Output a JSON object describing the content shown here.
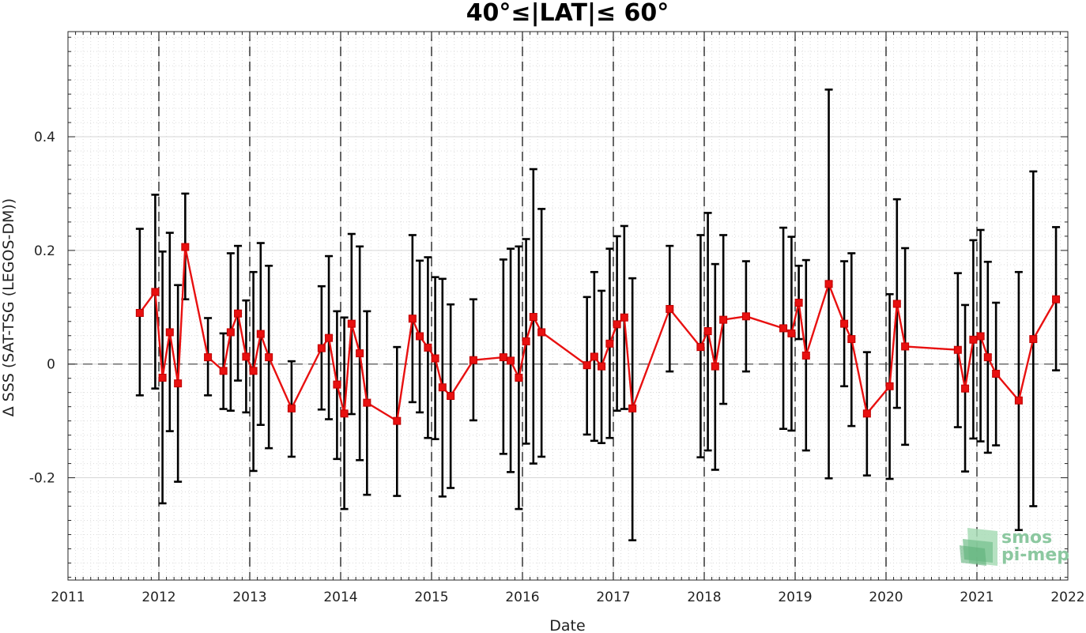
{
  "chart_data": {
    "type": "line",
    "title": "40°≤|LAT|≤ 60°",
    "xlabel": "Date",
    "ylabel": "Δ SSS (SAT-TSG (LEGOS-DM))",
    "xlim": [
      2011,
      2022
    ],
    "ylim": [
      -0.38,
      0.585
    ],
    "x_ticks": [
      "2011",
      "2012",
      "2013",
      "2014",
      "2015",
      "2016",
      "2017",
      "2018",
      "2019",
      "2020",
      "2021",
      "2022"
    ],
    "y_ticks": [
      -0.2,
      0,
      0.2,
      0.4
    ],
    "y_tick_labels": [
      "-0.2",
      "0",
      "0.2",
      "0.4"
    ],
    "grid": "minor-dotted",
    "year_boundaries_dashed": [
      2012,
      2013,
      2014,
      2015,
      2016,
      2017,
      2018,
      2019,
      2020,
      2021
    ],
    "zero_line": true,
    "series_color": "#e81010",
    "errorbar_color": "#000000",
    "points": [
      {
        "x": 2011.79,
        "y": 0.09,
        "lo": -0.055,
        "hi": 0.238
      },
      {
        "x": 2011.96,
        "y": 0.127,
        "lo": -0.043,
        "hi": 0.298
      },
      {
        "x": 2012.04,
        "y": -0.024,
        "lo": -0.245,
        "hi": 0.198
      },
      {
        "x": 2012.12,
        "y": 0.056,
        "lo": -0.118,
        "hi": 0.231
      },
      {
        "x": 2012.21,
        "y": -0.034,
        "lo": -0.207,
        "hi": 0.139
      },
      {
        "x": 2012.29,
        "y": 0.206,
        "lo": 0.114,
        "hi": 0.3
      },
      {
        "x": 2012.54,
        "y": 0.012,
        "lo": -0.055,
        "hi": 0.081
      },
      {
        "x": 2012.71,
        "y": -0.012,
        "lo": -0.079,
        "hi": 0.054
      },
      {
        "x": 2012.79,
        "y": 0.056,
        "lo": -0.082,
        "hi": 0.195
      },
      {
        "x": 2012.87,
        "y": 0.089,
        "lo": -0.029,
        "hi": 0.208
      },
      {
        "x": 2012.96,
        "y": 0.013,
        "lo": -0.085,
        "hi": 0.112
      },
      {
        "x": 2013.04,
        "y": -0.012,
        "lo": -0.188,
        "hi": 0.162
      },
      {
        "x": 2013.12,
        "y": 0.053,
        "lo": -0.107,
        "hi": 0.213
      },
      {
        "x": 2013.21,
        "y": 0.012,
        "lo": -0.148,
        "hi": 0.173
      },
      {
        "x": 2013.46,
        "y": -0.078,
        "lo": -0.163,
        "hi": 0.005
      },
      {
        "x": 2013.79,
        "y": 0.028,
        "lo": -0.08,
        "hi": 0.137
      },
      {
        "x": 2013.87,
        "y": 0.046,
        "lo": -0.097,
        "hi": 0.19
      },
      {
        "x": 2013.96,
        "y": -0.036,
        "lo": -0.167,
        "hi": 0.093
      },
      {
        "x": 2014.04,
        "y": -0.087,
        "lo": -0.255,
        "hi": 0.082
      },
      {
        "x": 2014.12,
        "y": 0.071,
        "lo": -0.088,
        "hi": 0.229
      },
      {
        "x": 2014.21,
        "y": 0.019,
        "lo": -0.169,
        "hi": 0.207
      },
      {
        "x": 2014.29,
        "y": -0.068,
        "lo": -0.23,
        "hi": 0.093
      },
      {
        "x": 2014.62,
        "y": -0.1,
        "lo": -0.232,
        "hi": 0.03
      },
      {
        "x": 2014.79,
        "y": 0.08,
        "lo": -0.067,
        "hi": 0.227
      },
      {
        "x": 2014.87,
        "y": 0.049,
        "lo": -0.085,
        "hi": 0.182
      },
      {
        "x": 2014.96,
        "y": 0.029,
        "lo": -0.13,
        "hi": 0.188
      },
      {
        "x": 2015.04,
        "y": 0.01,
        "lo": -0.132,
        "hi": 0.153
      },
      {
        "x": 2015.12,
        "y": -0.041,
        "lo": -0.233,
        "hi": 0.15
      },
      {
        "x": 2015.21,
        "y": -0.056,
        "lo": -0.218,
        "hi": 0.105
      },
      {
        "x": 2015.46,
        "y": 0.007,
        "lo": -0.099,
        "hi": 0.114
      },
      {
        "x": 2015.79,
        "y": 0.012,
        "lo": -0.158,
        "hi": 0.184
      },
      {
        "x": 2015.87,
        "y": 0.006,
        "lo": -0.19,
        "hi": 0.203
      },
      {
        "x": 2015.96,
        "y": -0.024,
        "lo": -0.255,
        "hi": 0.207
      },
      {
        "x": 2016.04,
        "y": 0.04,
        "lo": -0.14,
        "hi": 0.22
      },
      {
        "x": 2016.12,
        "y": 0.083,
        "lo": -0.175,
        "hi": 0.343
      },
      {
        "x": 2016.21,
        "y": 0.056,
        "lo": -0.163,
        "hi": 0.273
      },
      {
        "x": 2016.71,
        "y": -0.002,
        "lo": -0.124,
        "hi": 0.118
      },
      {
        "x": 2016.79,
        "y": 0.013,
        "lo": -0.135,
        "hi": 0.162
      },
      {
        "x": 2016.87,
        "y": -0.004,
        "lo": -0.139,
        "hi": 0.129
      },
      {
        "x": 2016.96,
        "y": 0.036,
        "lo": -0.13,
        "hi": 0.203
      },
      {
        "x": 2017.04,
        "y": 0.07,
        "lo": -0.082,
        "hi": 0.225
      },
      {
        "x": 2017.12,
        "y": 0.082,
        "lo": -0.079,
        "hi": 0.243
      },
      {
        "x": 2017.21,
        "y": -0.078,
        "lo": -0.31,
        "hi": 0.151
      },
      {
        "x": 2017.62,
        "y": 0.097,
        "lo": -0.013,
        "hi": 0.208
      },
      {
        "x": 2017.96,
        "y": 0.03,
        "lo": -0.164,
        "hi": 0.227
      },
      {
        "x": 2018.04,
        "y": 0.058,
        "lo": -0.152,
        "hi": 0.266
      },
      {
        "x": 2018.12,
        "y": -0.004,
        "lo": -0.186,
        "hi": 0.176
      },
      {
        "x": 2018.21,
        "y": 0.078,
        "lo": -0.07,
        "hi": 0.227
      },
      {
        "x": 2018.46,
        "y": 0.084,
        "lo": -0.013,
        "hi": 0.181
      },
      {
        "x": 2018.87,
        "y": 0.063,
        "lo": -0.114,
        "hi": 0.24
      },
      {
        "x": 2018.96,
        "y": 0.054,
        "lo": -0.117,
        "hi": 0.224
      },
      {
        "x": 2019.04,
        "y": 0.108,
        "lo": 0.044,
        "hi": 0.173
      },
      {
        "x": 2019.12,
        "y": 0.015,
        "lo": -0.152,
        "hi": 0.183
      },
      {
        "x": 2019.37,
        "y": 0.141,
        "lo": -0.201,
        "hi": 0.483
      },
      {
        "x": 2019.54,
        "y": 0.071,
        "lo": -0.039,
        "hi": 0.181
      },
      {
        "x": 2019.62,
        "y": 0.044,
        "lo": -0.109,
        "hi": 0.195
      },
      {
        "x": 2019.79,
        "y": -0.087,
        "lo": -0.196,
        "hi": 0.021
      },
      {
        "x": 2020.04,
        "y": -0.039,
        "lo": -0.202,
        "hi": 0.123
      },
      {
        "x": 2020.12,
        "y": 0.106,
        "lo": -0.077,
        "hi": 0.29
      },
      {
        "x": 2020.21,
        "y": 0.031,
        "lo": -0.142,
        "hi": 0.204
      },
      {
        "x": 2020.79,
        "y": 0.025,
        "lo": -0.111,
        "hi": 0.16
      },
      {
        "x": 2020.87,
        "y": -0.043,
        "lo": -0.189,
        "hi": 0.104
      },
      {
        "x": 2020.96,
        "y": 0.043,
        "lo": -0.131,
        "hi": 0.218
      },
      {
        "x": 2021.04,
        "y": 0.049,
        "lo": -0.136,
        "hi": 0.236
      },
      {
        "x": 2021.12,
        "y": 0.012,
        "lo": -0.156,
        "hi": 0.18
      },
      {
        "x": 2021.21,
        "y": -0.017,
        "lo": -0.143,
        "hi": 0.108
      },
      {
        "x": 2021.46,
        "y": -0.064,
        "lo": -0.292,
        "hi": 0.162
      },
      {
        "x": 2021.62,
        "y": 0.044,
        "lo": -0.25,
        "hi": 0.339
      },
      {
        "x": 2021.87,
        "y": 0.114,
        "lo": -0.011,
        "hi": 0.241
      }
    ]
  },
  "watermark": {
    "line1": "smos",
    "line2": "pi-mep",
    "color": "#8cc8a0"
  }
}
